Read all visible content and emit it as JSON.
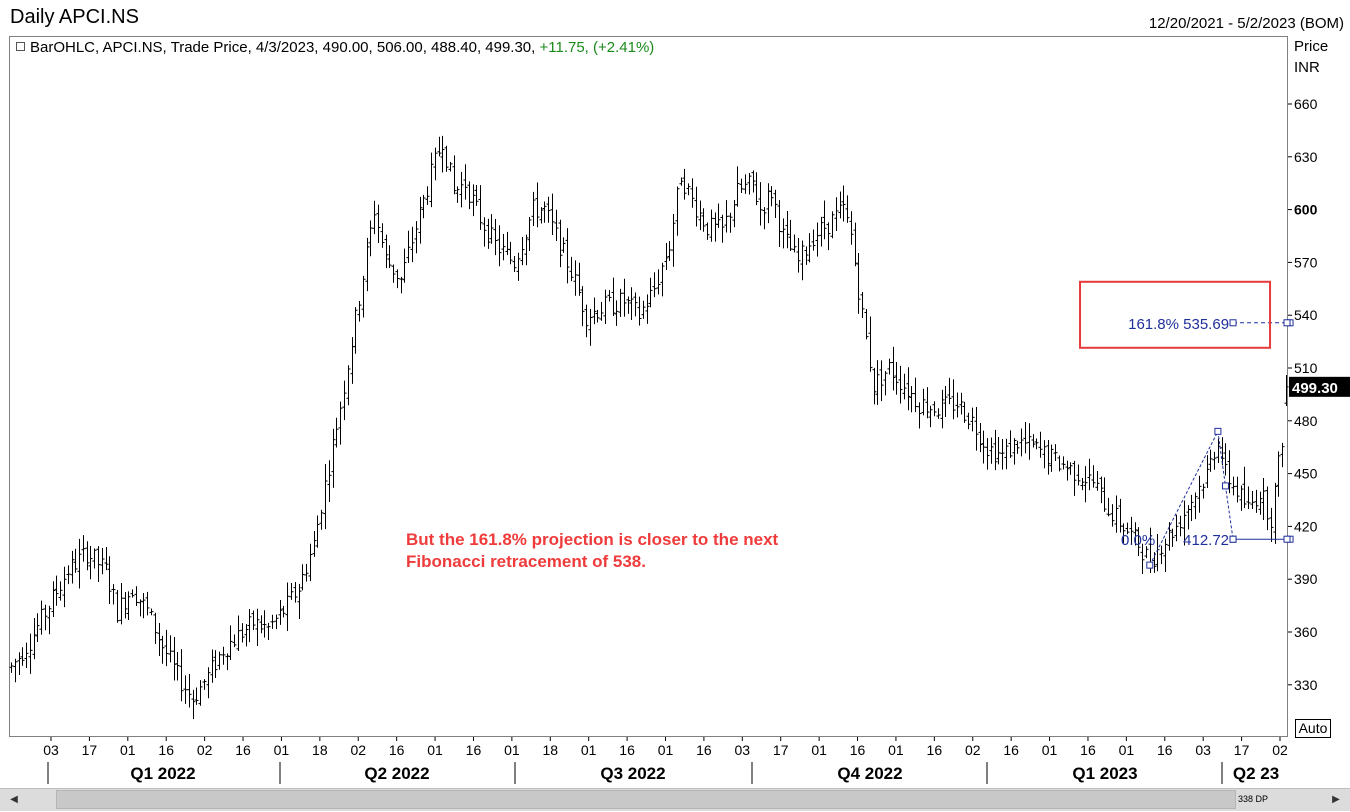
{
  "header": {
    "title": "Daily APCI.NS",
    "date_range": "12/20/2021 - 5/2/2023 (BOM)"
  },
  "legend": {
    "series_label": "BarOHLC, APCI.NS, Trade Price, 4/3/2023, 490.00, 506.00, 488.40, 499.30,",
    "change": "+11.75, (+2.41%)"
  },
  "y_axis": {
    "unit_line1": "Price",
    "unit_line2": "INR",
    "ticks": [
      "660",
      "630",
      "600",
      "570",
      "540",
      "510",
      "480",
      "450",
      "420",
      "390",
      "360",
      "330"
    ],
    "last_price": "499.30"
  },
  "annotation": {
    "line1": "But the 161.8% projection is closer to the next",
    "line2": "Fibonacci retracement of 538."
  },
  "fib": {
    "label_1618": "161.8% 535.69",
    "label_0_pct": "0.0%",
    "label_0_val": "412.72"
  },
  "controls": {
    "auto_label": "Auto",
    "scroll_count": "338 DP"
  },
  "chart_data": {
    "type": "bar",
    "subtype": "OHLC",
    "title": "Daily APCI.NS",
    "ylabel": "Price INR",
    "ylim": [
      312,
      685
    ],
    "x_tick_labels": [
      "03",
      "17",
      "01",
      "16",
      "02",
      "16",
      "01",
      "18",
      "02",
      "16",
      "01",
      "16",
      "01",
      "18",
      "01",
      "16",
      "01",
      "16",
      "03",
      "17",
      "01",
      "16",
      "01",
      "16",
      "02",
      "16",
      "01",
      "16",
      "01",
      "16",
      "03",
      "17",
      "02"
    ],
    "quarter_labels": [
      "Q1 2022",
      "Q2 2022",
      "Q3 2022",
      "Q4 2022",
      "Q1 2023",
      "Q2 23"
    ],
    "price_path": [
      [
        0,
        340
      ],
      [
        5,
        355
      ],
      [
        10,
        375
      ],
      [
        15,
        395
      ],
      [
        20,
        405
      ],
      [
        25,
        395
      ],
      [
        28,
        372
      ],
      [
        32,
        385
      ],
      [
        36,
        372
      ],
      [
        40,
        352
      ],
      [
        44,
        335
      ],
      [
        48,
        322
      ],
      [
        52,
        335
      ],
      [
        56,
        350
      ],
      [
        60,
        358
      ],
      [
        64,
        365
      ],
      [
        68,
        362
      ],
      [
        72,
        372
      ],
      [
        76,
        385
      ],
      [
        80,
        410
      ],
      [
        84,
        455
      ],
      [
        88,
        500
      ],
      [
        92,
        550
      ],
      [
        96,
        600
      ],
      [
        99,
        572
      ],
      [
        103,
        560
      ],
      [
        107,
        590
      ],
      [
        111,
        620
      ],
      [
        114,
        640
      ],
      [
        117,
        610
      ],
      [
        120,
        615
      ],
      [
        124,
        595
      ],
      [
        128,
        580
      ],
      [
        133,
        570
      ],
      [
        138,
        600
      ],
      [
        141,
        600
      ],
      [
        144,
        585
      ],
      [
        148,
        565
      ],
      [
        152,
        540
      ],
      [
        157,
        545
      ],
      [
        162,
        548
      ],
      [
        166,
        540
      ],
      [
        170,
        555
      ],
      [
        174,
        580
      ],
      [
        177,
        620
      ],
      [
        180,
        605
      ],
      [
        184,
        590
      ],
      [
        188,
        588
      ],
      [
        192,
        610
      ],
      [
        196,
        615
      ],
      [
        198,
        600
      ],
      [
        201,
        610
      ],
      [
        204,
        585
      ],
      [
        208,
        570
      ],
      [
        212,
        585
      ],
      [
        216,
        592
      ],
      [
        220,
        600
      ],
      [
        222,
        585
      ],
      [
        225,
        540
      ],
      [
        228,
        500
      ],
      [
        232,
        510
      ],
      [
        236,
        500
      ],
      [
        240,
        490
      ],
      [
        245,
        487
      ],
      [
        250,
        490
      ],
      [
        254,
        480
      ],
      [
        258,
        465
      ],
      [
        262,
        460
      ],
      [
        266,
        468
      ],
      [
        270,
        465
      ],
      [
        274,
        460
      ],
      [
        278,
        455
      ],
      [
        282,
        450
      ],
      [
        286,
        445
      ],
      [
        290,
        430
      ],
      [
        294,
        420
      ],
      [
        298,
        410
      ],
      [
        301,
        400
      ],
      [
        304,
        410
      ],
      [
        308,
        420
      ],
      [
        312,
        435
      ],
      [
        316,
        450
      ],
      [
        319,
        470
      ],
      [
        321,
        450
      ],
      [
        324,
        440
      ],
      [
        327,
        430
      ],
      [
        330,
        440
      ],
      [
        333,
        425
      ],
      [
        335,
        455
      ],
      [
        337,
        485
      ],
      [
        338,
        499.3
      ]
    ],
    "total_bars": 338,
    "fib_levels": [
      {
        "label": "161.8%",
        "value": 535.69
      },
      {
        "label": "0.0%",
        "value": 412.72
      }
    ],
    "fib_pivots": [
      {
        "bar": 301,
        "price": 398
      },
      {
        "bar": 319,
        "price": 474
      },
      {
        "bar": 321,
        "price": 443
      },
      {
        "bar": 323,
        "price": 412.72
      }
    ],
    "last_close": 499.3
  },
  "colors": {
    "bars": "#000000",
    "fib": "#1f2f9c",
    "annotation": "#ef3b3b",
    "highlight_box": "#e53b3b",
    "change_positive": "#1a8a1a"
  }
}
